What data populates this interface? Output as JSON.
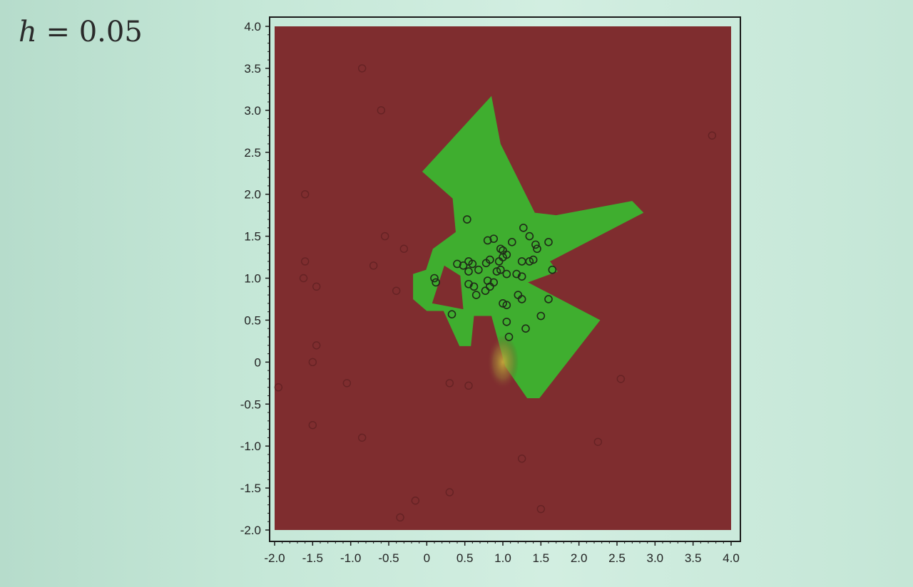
{
  "slide": {
    "title_var": "h",
    "title_rest": " = 0.05"
  },
  "colors": {
    "background_region": "#7f2d2f",
    "class_region": "#3fae2f",
    "points": "#1f2a18",
    "frame": "#1a1a1a"
  },
  "chart_data": {
    "type": "scatter",
    "title": "",
    "xlabel": "",
    "ylabel": "",
    "xlim": [
      -2.0,
      4.0
    ],
    "ylim": [
      -2.0,
      4.0
    ],
    "xticks": [
      "-2.0",
      "-1.5",
      "-1.0",
      "-0.5",
      "0",
      "0.5",
      "1.0",
      "1.5",
      "2.0",
      "2.5",
      "3.0",
      "3.5",
      "4.0"
    ],
    "yticks": [
      "4.0",
      "3.5",
      "3.0",
      "2.5",
      "2.0",
      "1.5",
      "1.0",
      "0.5",
      "0",
      "-0.5",
      "-1.0",
      "-1.5",
      "-2.0"
    ],
    "grid": false,
    "decision_region_green": [
      [
        -0.06,
        2.27
      ],
      [
        0.85,
        3.17
      ],
      [
        0.97,
        2.6
      ],
      [
        1.42,
        1.78
      ],
      [
        1.7,
        1.75
      ],
      [
        2.7,
        1.92
      ],
      [
        2.85,
        1.78
      ],
      [
        1.62,
        1.2
      ],
      [
        1.72,
        1.08
      ],
      [
        1.33,
        0.95
      ],
      [
        2.28,
        0.5
      ],
      [
        1.48,
        -0.43
      ],
      [
        1.32,
        -0.43
      ],
      [
        1.03,
        -0.05
      ],
      [
        0.85,
        0.55
      ],
      [
        0.62,
        0.55
      ],
      [
        0.58,
        0.19
      ],
      [
        0.43,
        0.19
      ],
      [
        0.22,
        0.61
      ],
      [
        0.0,
        0.61
      ],
      [
        -0.18,
        0.75
      ],
      [
        -0.18,
        1.05
      ],
      [
        -0.01,
        1.1
      ],
      [
        0.08,
        1.35
      ],
      [
        0.38,
        1.55
      ],
      [
        0.34,
        1.95
      ]
    ],
    "decision_region_hole": [
      [
        0.23,
        1.15
      ],
      [
        0.44,
        1.03
      ],
      [
        0.48,
        0.63
      ],
      [
        0.07,
        0.7
      ]
    ],
    "points_class_green": [
      [
        0.53,
        1.7
      ],
      [
        1.27,
        1.6
      ],
      [
        1.35,
        1.5
      ],
      [
        1.12,
        1.43
      ],
      [
        1.43,
        1.4
      ],
      [
        1.45,
        1.35
      ],
      [
        1.6,
        1.43
      ],
      [
        0.8,
        1.45
      ],
      [
        0.88,
        1.47
      ],
      [
        0.97,
        1.35
      ],
      [
        1.0,
        1.33
      ],
      [
        1.05,
        1.28
      ],
      [
        1.0,
        1.25
      ],
      [
        0.95,
        1.2
      ],
      [
        0.83,
        1.22
      ],
      [
        0.78,
        1.18
      ],
      [
        0.6,
        1.17
      ],
      [
        0.55,
        1.2
      ],
      [
        0.48,
        1.15
      ],
      [
        0.4,
        1.17
      ],
      [
        0.55,
        1.08
      ],
      [
        0.68,
        1.1
      ],
      [
        0.92,
        1.08
      ],
      [
        0.97,
        1.1
      ],
      [
        1.05,
        1.05
      ],
      [
        1.18,
        1.05
      ],
      [
        1.25,
        1.02
      ],
      [
        1.35,
        1.2
      ],
      [
        1.4,
        1.22
      ],
      [
        1.25,
        1.2
      ],
      [
        1.65,
        1.1
      ],
      [
        0.1,
        1.0
      ],
      [
        0.12,
        0.95
      ],
      [
        0.55,
        0.93
      ],
      [
        0.62,
        0.9
      ],
      [
        0.77,
        0.85
      ],
      [
        0.83,
        0.9
      ],
      [
        0.8,
        0.97
      ],
      [
        0.88,
        0.95
      ],
      [
        1.2,
        0.8
      ],
      [
        1.25,
        0.75
      ],
      [
        1.6,
        0.75
      ],
      [
        0.65,
        0.8
      ],
      [
        1.0,
        0.7
      ],
      [
        1.05,
        0.68
      ],
      [
        0.33,
        0.57
      ],
      [
        1.5,
        0.55
      ],
      [
        1.05,
        0.48
      ],
      [
        1.3,
        0.4
      ],
      [
        1.08,
        0.3
      ]
    ],
    "points_class_red": [
      [
        -1.6,
        2.0
      ],
      [
        -0.85,
        3.5
      ],
      [
        -0.6,
        3.0
      ],
      [
        3.75,
        2.7
      ],
      [
        -1.6,
        1.2
      ],
      [
        -1.62,
        1.0
      ],
      [
        -1.45,
        0.9
      ],
      [
        -0.55,
        1.5
      ],
      [
        -0.3,
        1.35
      ],
      [
        -0.7,
        1.15
      ],
      [
        -0.4,
        0.85
      ],
      [
        -1.5,
        0.0
      ],
      [
        -1.45,
        0.2
      ],
      [
        -1.95,
        -0.3
      ],
      [
        -1.5,
        -0.75
      ],
      [
        -1.05,
        -0.25
      ],
      [
        -0.85,
        -0.9
      ],
      [
        0.3,
        -0.25
      ],
      [
        0.55,
        -0.28
      ],
      [
        2.55,
        -0.2
      ],
      [
        2.25,
        -0.95
      ],
      [
        1.25,
        -1.15
      ],
      [
        -0.15,
        -1.65
      ],
      [
        0.3,
        -1.55
      ],
      [
        -0.35,
        -1.85
      ],
      [
        1.5,
        -1.75
      ]
    ]
  }
}
